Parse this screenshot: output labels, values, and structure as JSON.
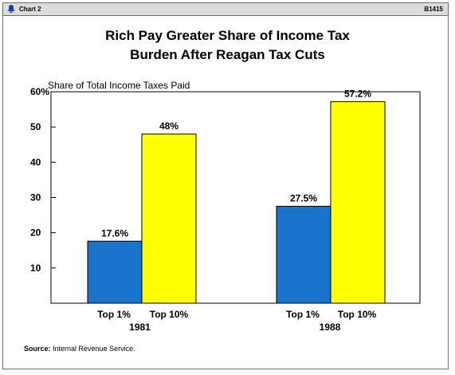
{
  "header": {
    "chart_number": "Chart 2",
    "code": "B1415"
  },
  "chart_data": {
    "type": "bar",
    "title": "Rich Pay Greater Share of Income Tax",
    "title_line2": "Burden After Reagan Tax Cuts",
    "ylabel": "Share of Total Income Taxes Paid",
    "ylim": [
      0,
      60
    ],
    "yticks": [
      "60%",
      "50",
      "40",
      "30",
      "20",
      "10"
    ],
    "ytick_values": [
      60,
      50,
      40,
      30,
      20,
      10
    ],
    "groups": [
      {
        "year": "1981",
        "bars": [
          {
            "label": "Top 1%",
            "value": 17.6,
            "value_label": "17.6%"
          },
          {
            "label": "Top 10%",
            "value": 48,
            "value_label": "48%"
          }
        ]
      },
      {
        "year": "1988",
        "bars": [
          {
            "label": "Top 1%",
            "value": 27.5,
            "value_label": "27.5%"
          },
          {
            "label": "Top 10%",
            "value": 57.2,
            "value_label": "57.2%"
          }
        ]
      }
    ],
    "colors": {
      "top1": "#1874cd",
      "top10": "#ffff00"
    },
    "grid": false
  },
  "source": {
    "label": "Source:",
    "text": "Internal Revenue Service."
  }
}
